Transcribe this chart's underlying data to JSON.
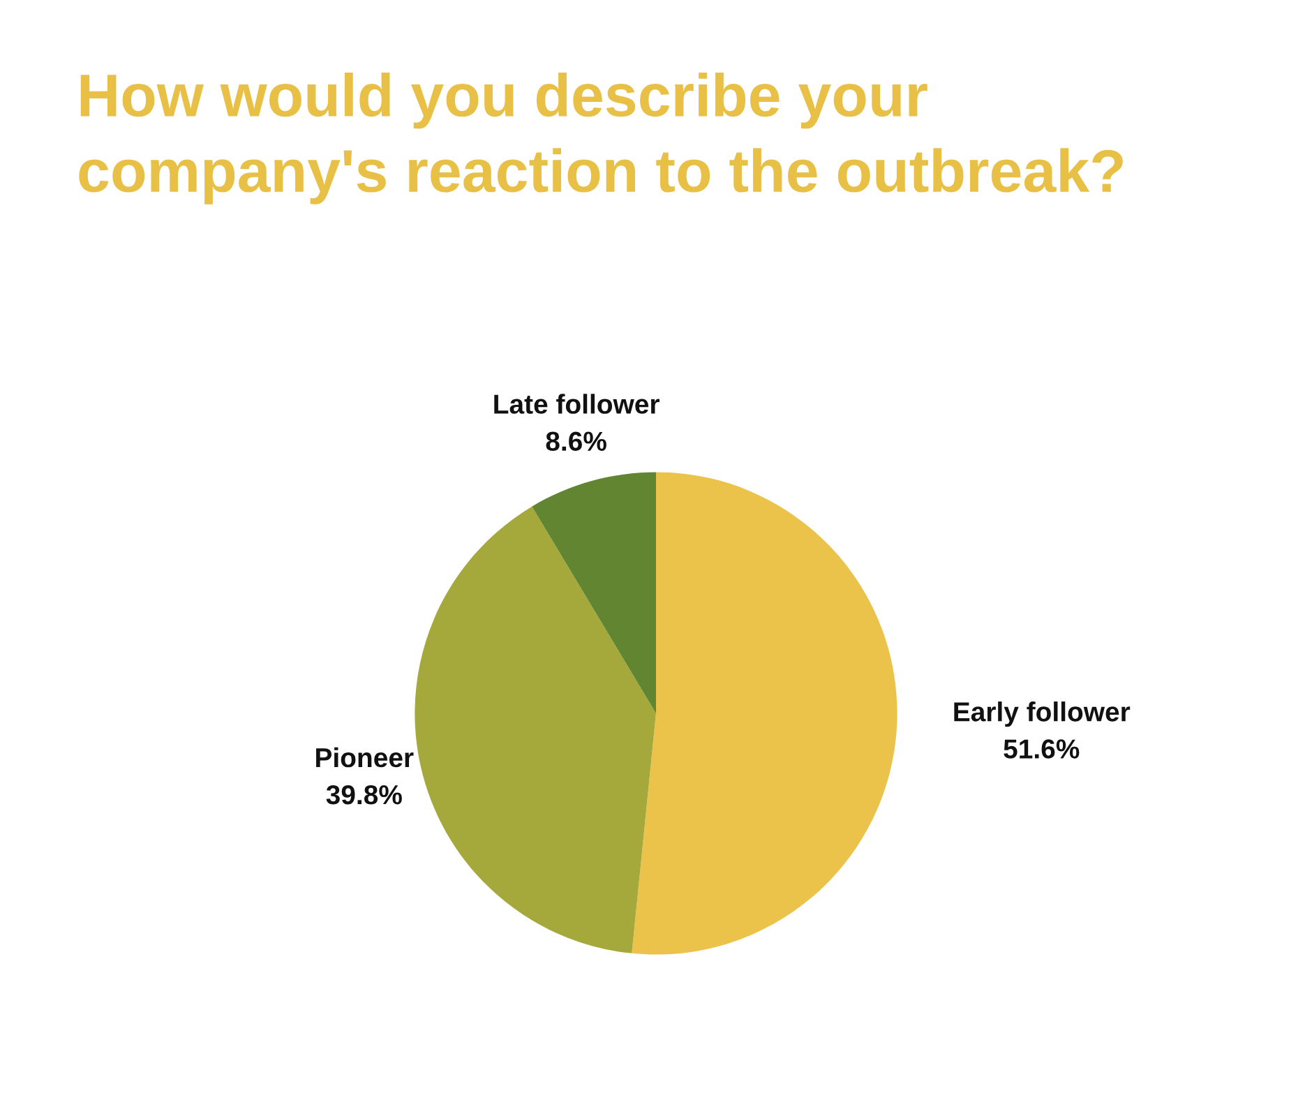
{
  "chart_data": {
    "type": "pie",
    "title": "How would you describe your\ncompany's reaction to the outbreak?",
    "categories": [
      "Early follower",
      "Pioneer",
      "Late follower"
    ],
    "values": [
      51.6,
      39.8,
      8.6
    ],
    "value_labels": [
      "51.6%",
      "39.8%",
      "8.6%"
    ],
    "colors": [
      "#ebc24a",
      "#a5a83a",
      "#628532"
    ],
    "legend": false
  }
}
